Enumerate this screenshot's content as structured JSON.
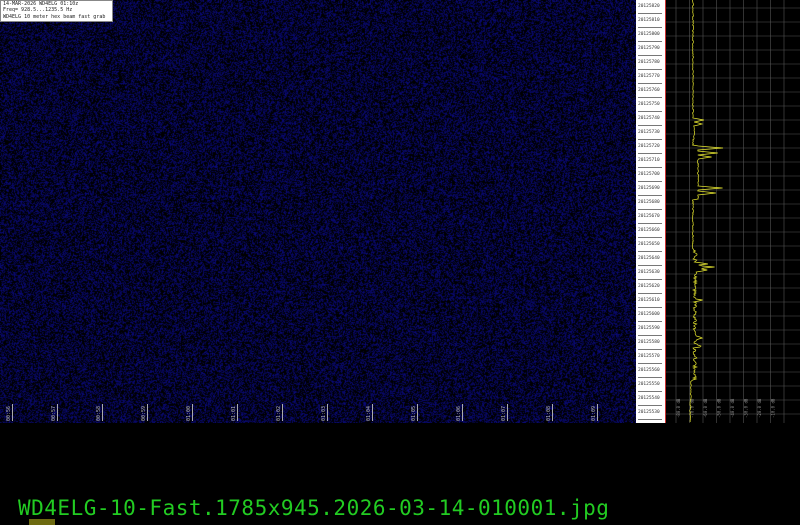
{
  "header": {
    "line1": "14-MAR-2026  WD4ELG  01:10z",
    "line2": "Freq= 928.5...1235.5 Hz",
    "line3": "WD4ELG 10 meter hex beam fast grab"
  },
  "time_labels": [
    "00:56",
    "00:57",
    "00:58",
    "00:59",
    "01:00",
    "01:01",
    "01:02",
    "01:03",
    "01:04",
    "01:05",
    "01:06",
    "01:07",
    "01:08",
    "01:09"
  ],
  "freq_labels": [
    "20125820",
    "20125810",
    "20125800",
    "20125790",
    "20125780",
    "20125770",
    "20125760",
    "20125750",
    "20125740",
    "20125730",
    "20125720",
    "20125710",
    "20125700",
    "20125690",
    "20125680",
    "20125670",
    "20125660",
    "20125650",
    "20125640",
    "20125630",
    "20125620",
    "20125610",
    "20125600",
    "20125590",
    "20125580",
    "20125570",
    "20125560",
    "20125550",
    "20125540",
    "20125530"
  ],
  "level_labels": [
    "-80.0 dB",
    "-70.0 dB",
    "-60.0 dB",
    "-50.0 dB",
    "-40.0 dB",
    "-30.0 dB",
    "-20.0 dB",
    "-10.0 dB"
  ],
  "footer": {
    "filename": "WD4ELG-10-Fast.1785x945.2026-03-14-010001.jpg"
  },
  "colors": {
    "noise": "#0a0a6a",
    "trace": "#e8e830",
    "footer_text": "#22cc22",
    "grid": "#555555"
  }
}
